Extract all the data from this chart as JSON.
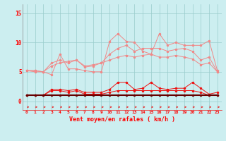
{
  "x": [
    0,
    1,
    2,
    3,
    4,
    5,
    6,
    7,
    8,
    9,
    10,
    11,
    12,
    13,
    14,
    15,
    16,
    17,
    18,
    19,
    20,
    21,
    22,
    23
  ],
  "series_light1": [
    5.2,
    5.0,
    5.0,
    4.5,
    8.0,
    5.5,
    5.5,
    5.2,
    5.0,
    5.0,
    10.2,
    11.5,
    10.2,
    10.0,
    8.5,
    8.0,
    11.5,
    9.5,
    10.0,
    9.5,
    9.5,
    9.5,
    10.3,
    5.2
  ],
  "series_light2": [
    5.2,
    5.2,
    5.0,
    6.5,
    7.0,
    6.5,
    7.0,
    5.8,
    6.0,
    6.5,
    8.0,
    9.0,
    9.5,
    8.5,
    9.0,
    9.0,
    9.0,
    8.5,
    8.8,
    9.0,
    8.5,
    7.0,
    7.5,
    5.0
  ],
  "series_light3": [
    5.2,
    5.2,
    5.0,
    6.0,
    6.5,
    6.8,
    7.0,
    6.0,
    6.2,
    6.5,
    7.0,
    7.5,
    7.8,
    7.5,
    7.8,
    8.0,
    7.5,
    7.5,
    7.8,
    7.5,
    7.2,
    6.2,
    6.5,
    5.0
  ],
  "series_mid1": [
    1.0,
    1.0,
    1.0,
    2.0,
    2.0,
    1.8,
    2.0,
    1.5,
    1.5,
    1.5,
    2.0,
    3.2,
    3.2,
    2.0,
    2.2,
    3.2,
    2.2,
    2.0,
    2.2,
    2.2,
    3.2,
    2.2,
    1.2,
    1.5
  ],
  "series_mid2": [
    1.0,
    1.0,
    1.0,
    1.8,
    1.8,
    1.5,
    1.8,
    1.2,
    1.2,
    1.2,
    1.5,
    1.8,
    1.8,
    1.8,
    1.8,
    1.8,
    1.8,
    1.8,
    1.8,
    1.8,
    1.8,
    1.5,
    1.0,
    1.0
  ],
  "series_dark": [
    1.0,
    1.0,
    1.0,
    1.0,
    1.0,
    1.0,
    1.0,
    1.0,
    1.0,
    1.0,
    1.0,
    1.0,
    1.0,
    1.0,
    1.0,
    1.0,
    1.0,
    1.0,
    1.0,
    1.0,
    1.0,
    1.0,
    1.0,
    1.0
  ],
  "background_color": "#cceef0",
  "grid_color": "#99cccc",
  "color_light": "#f08888",
  "color_mid": "#ee1111",
  "color_dark": "#660000",
  "xlabel": "Vent moyen/en rafales ( km/h )",
  "ylim": [
    -1.5,
    16.5
  ],
  "xlim": [
    -0.5,
    23.5
  ],
  "yticks": [
    0,
    5,
    10,
    15
  ],
  "xticks": [
    0,
    1,
    2,
    3,
    4,
    5,
    6,
    7,
    8,
    9,
    10,
    11,
    12,
    13,
    14,
    15,
    16,
    17,
    18,
    19,
    20,
    21,
    22,
    23
  ]
}
